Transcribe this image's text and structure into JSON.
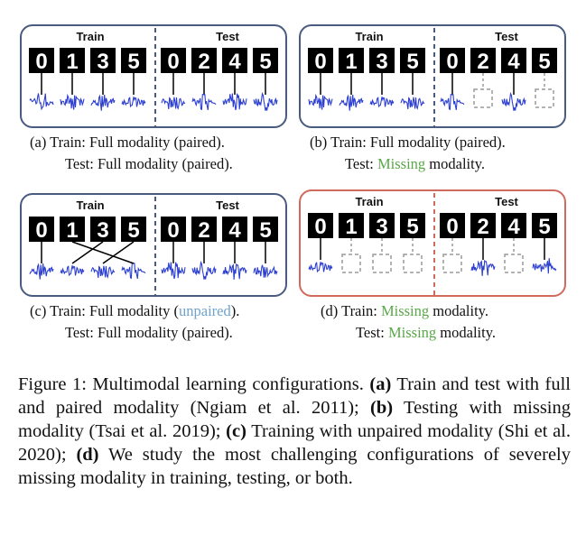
{
  "panels": {
    "a": {
      "train_label": "Train",
      "test_label": "Test",
      "caption_1": "(a) Train: Full modality (paired).",
      "caption_2": "Test: Full modality (paired)."
    },
    "b": {
      "train_label": "Train",
      "test_label": "Test",
      "caption_1": "(b) Train: Full modality (paired).",
      "caption_2_missing": "Missing",
      "caption_2_rest": " modality.",
      "caption_2_prefix": "Test: "
    },
    "c": {
      "train_label": "Train",
      "test_label": "Test",
      "caption_1_prefix": "(c) Train: Full modality (",
      "caption_1_unpaired": "unpaired",
      "caption_1_suffix": ").",
      "caption_2": "Test: Full modality (paired)."
    },
    "d": {
      "train_label": "Train",
      "test_label": "Test",
      "caption_1_prefix": "(d) Train: ",
      "caption_1_missing": "Missing",
      "caption_1_suffix": " modality.",
      "caption_2_prefix": "Test: ",
      "caption_2_missing": "Missing",
      "caption_2_suffix": " modality."
    }
  },
  "digits": {
    "train": [
      "0",
      "1",
      "3",
      "5"
    ],
    "test": [
      "0",
      "2",
      "4",
      "5"
    ]
  },
  "figure_caption": {
    "lead": "Figure 1: Multimodal learning configurations. ",
    "a_label": "(a)",
    "a_text": " Train and test with full and paired modality (Ngiam et al. 2011); ",
    "b_label": "(b)",
    "b_text": " Testing with missing modality (Tsai et al. 2019); ",
    "c_label": "(c)",
    "c_text": " Training with unpaired modality (Shi et al. 2020); ",
    "d_label": "(d)",
    "d_text": " We study the most challenging configurations of severely missing modality in training, testing, or both."
  },
  "colors": {
    "panel_border": "#4a5b80",
    "red_border": "#d06a5c",
    "wave": "#2d3fd0",
    "missing": "#5aa84a",
    "unpaired": "#6fa2cf",
    "dashed_box": "#9a9a9a"
  }
}
